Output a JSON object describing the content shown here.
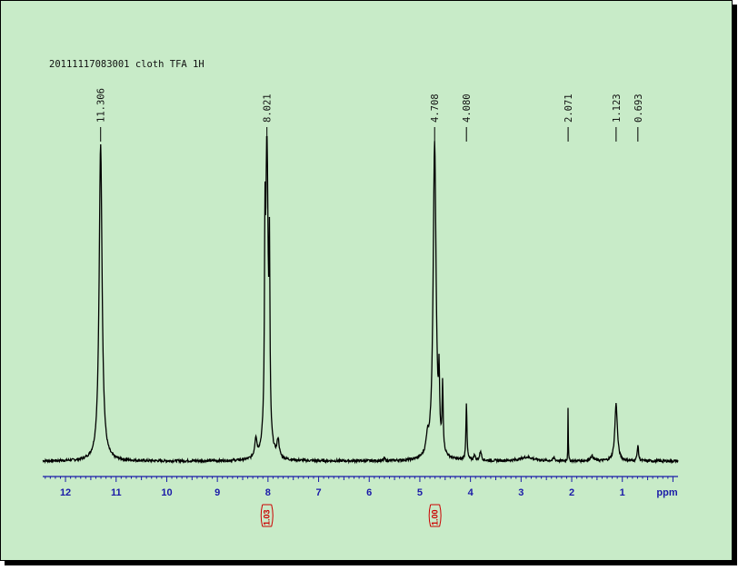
{
  "chart_data": {
    "type": "line",
    "title": "20111117083001 cloth  TFA 1H",
    "xlabel": "ppm",
    "xlim": [
      12.45,
      -0.1
    ],
    "x_ticks": [
      12,
      11,
      10,
      9,
      8,
      7,
      6,
      5,
      4,
      3,
      2,
      1
    ],
    "x_reversed": true,
    "grid": false,
    "peak_labels": [
      "11.306",
      "8.021",
      "4.708",
      "4.080",
      "2.071",
      "1.123",
      "0.693"
    ],
    "peaks": [
      {
        "ppm": 11.306,
        "height": 1.0
      },
      {
        "ppm": 8.021,
        "height": 1.0
      },
      {
        "ppm": 4.708,
        "height": 1.0
      },
      {
        "ppm": 4.08,
        "height": 0.18
      },
      {
        "ppm": 2.071,
        "height": 0.2
      },
      {
        "ppm": 1.123,
        "height": 0.18
      },
      {
        "ppm": 0.693,
        "height": 0.05
      }
    ],
    "integrals": [
      {
        "ppm": 8.02,
        "label": "1.03"
      },
      {
        "ppm": 4.7,
        "label": "1.00"
      }
    ],
    "colors": {
      "background": "#c8ebc8",
      "trace": "#000000",
      "axis": "#1a1aa8",
      "integral": "#cc0000"
    }
  }
}
